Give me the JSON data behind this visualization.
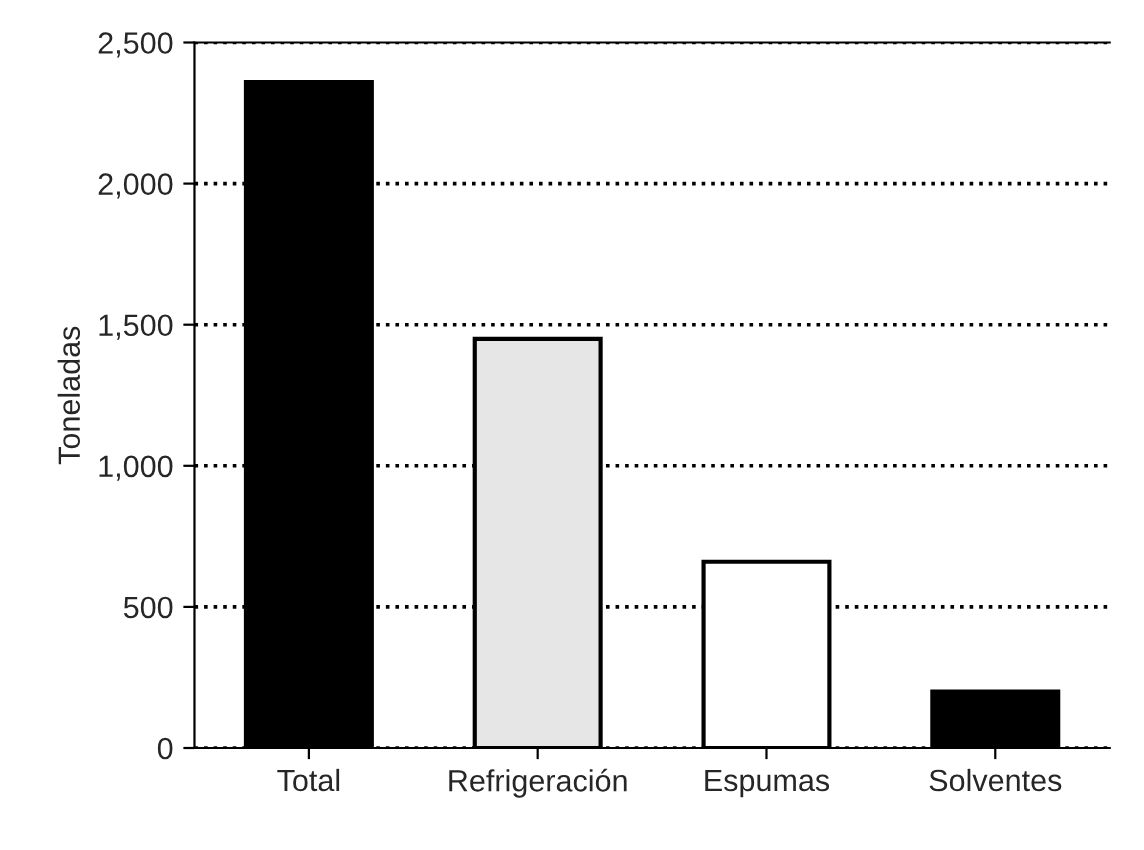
{
  "chart_data": {
    "type": "bar",
    "ylabel": "Toneladas",
    "categories": [
      "Total",
      "Refrigeración",
      "Espumas",
      "Solventes"
    ],
    "values": [
      2360,
      1450,
      660,
      200
    ],
    "colors": [
      "#000000",
      "#e6e6e6",
      "#ffffff",
      "#000000"
    ],
    "ylim": [
      0,
      2500
    ],
    "yticks": [
      0,
      500,
      {
        "value": 1000,
        "label": "1,000"
      },
      {
        "value": 1500,
        "label": "1,500"
      },
      {
        "value": 2000,
        "label": "2,000"
      },
      {
        "value": 2500,
        "label": "2,500"
      }
    ],
    "grid": "y",
    "line_style": "dotted",
    "legend": false
  }
}
